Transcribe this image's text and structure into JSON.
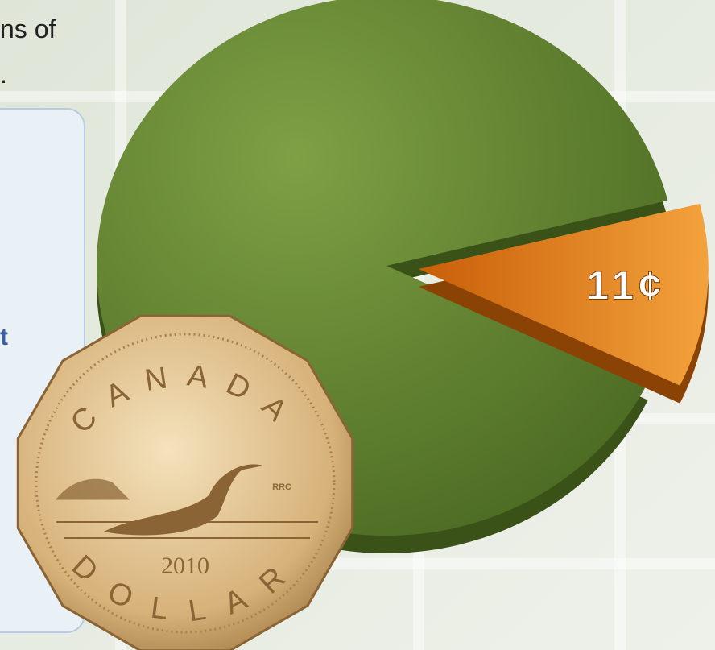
{
  "chart_data": {
    "type": "pie",
    "values": [
      11,
      89
    ],
    "value_labels": [
      "11¢",
      null
    ],
    "colors": [
      "#e07a10",
      "#5f7f2c"
    ],
    "start_angle": -14
  },
  "text_fragments": [
    "ns of",
    ".",
    "t"
  ],
  "coin": {
    "country": "CANADA",
    "denomination": "DOLLAR",
    "year": "2010",
    "mark": "RRC"
  }
}
